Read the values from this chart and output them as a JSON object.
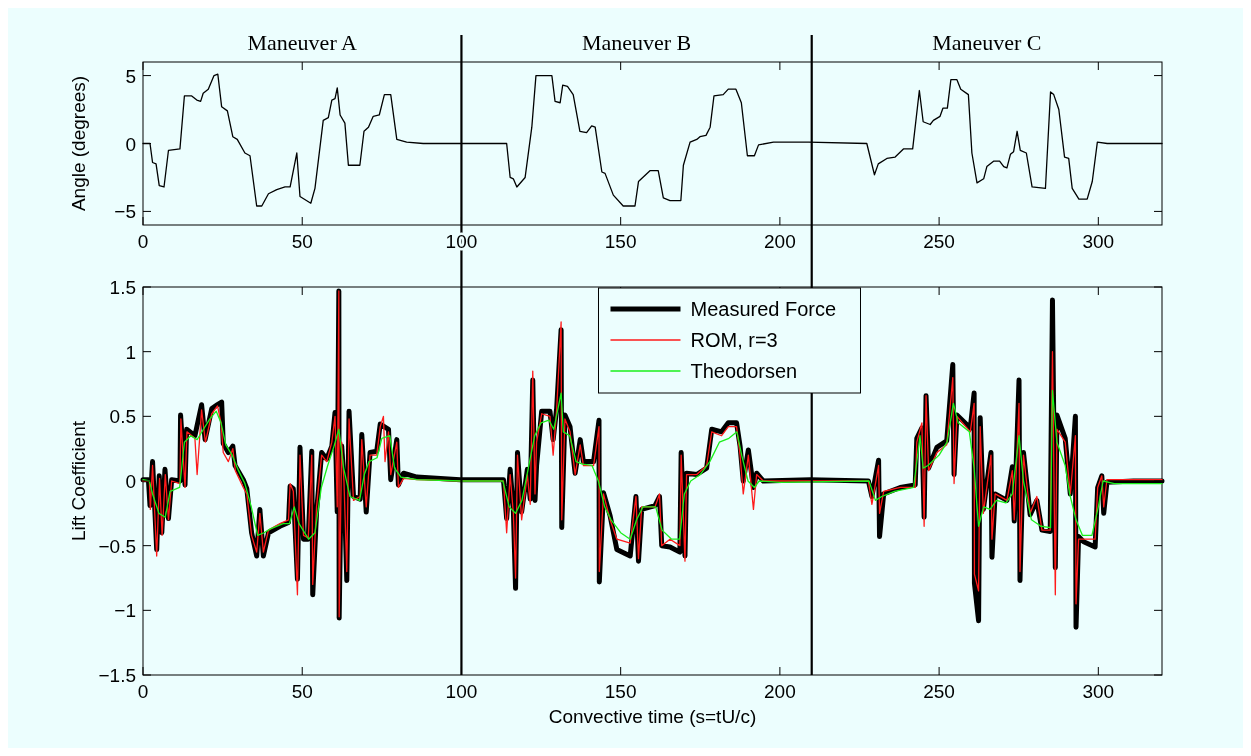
{
  "chart_data": [
    {
      "type": "line",
      "ylabel": "Angle (degrees)",
      "xlim": [
        0,
        320
      ],
      "xticks": [
        0,
        50,
        100,
        150,
        200,
        250,
        300
      ],
      "ylim": [
        -6,
        6
      ],
      "yticks": [
        -5,
        0,
        5
      ],
      "annotations": [
        "Maneuver A",
        "Maneuver B",
        "Maneuver C"
      ],
      "ref_lines": [
        {
          "axis": "x",
          "value": 100,
          "color": "#000000"
        },
        {
          "axis": "x",
          "value": 210,
          "color": "#000000"
        }
      ],
      "series": [
        {
          "color": "#000000",
          "x": [
            0,
            2.2,
            3.0,
            4.1,
            5.1,
            6.6,
            8.0,
            11.6,
            13.0,
            15.3,
            16.9,
            18.1,
            18.9,
            20.5,
            22.3,
            23.5,
            24.7,
            26.5,
            28.2,
            29.6,
            32.0,
            33.6,
            35.7,
            37.3,
            39.4,
            42.0,
            44.6,
            46.2,
            48.3,
            49.3,
            52.7,
            54.0,
            56.6,
            58.2,
            59.3,
            60.3,
            61.0,
            61.9,
            63.4,
            64.5,
            68.1,
            69.4,
            70.8,
            72.3,
            74.2,
            75.8,
            77.8,
            79.7,
            82.8,
            88.0,
            100,
            114.2,
            115.3,
            116.3,
            117.4,
            120.0,
            122.1,
            123.4,
            128.4,
            129.4,
            131.0,
            131.8,
            133.3,
            135.1,
            137.2,
            139.3,
            140.9,
            142.0,
            144.1,
            145.1,
            147.7,
            150.8,
            154.5,
            155.6,
            159.2,
            161.8,
            163.4,
            165.5,
            168.9,
            169.7,
            171.8,
            173.9,
            174.9,
            176.8,
            178.1,
            179.3,
            182.2,
            183.8,
            186.2,
            187.9,
            189.8,
            192.0,
            193.3,
            198.0,
            209,
            227.3,
            229.7,
            230.9,
            233.6,
            236.2,
            238.8,
            241.7,
            243.8,
            245.0,
            247.2,
            248.2,
            250.3,
            251.2,
            252.6,
            253.7,
            255.6,
            256.8,
            259.2,
            260.3,
            261.9,
            264.0,
            265.0,
            267.1,
            269.0,
            270.3,
            271.3,
            272.4,
            273.4,
            274.5,
            275.5,
            277.4,
            279.2,
            283.4,
            285.0,
            286.0,
            287.6,
            289.4,
            290.7,
            291.8,
            293.9,
            296.5,
            298.1,
            299.7,
            302.8,
            320
          ],
          "values": [
            0,
            0,
            -1.4,
            -1.5,
            -3.1,
            -3.2,
            -0.5,
            -0.4,
            3.5,
            3.5,
            3.2,
            3.1,
            3.7,
            4.0,
            5.0,
            5.1,
            2.7,
            2.4,
            0.5,
            0.3,
            -0.7,
            -0.9,
            -4.6,
            -4.6,
            -3.7,
            -3.4,
            -3.2,
            -3.2,
            -0.7,
            -3.9,
            -4.4,
            -3.3,
            1.7,
            1.9,
            3.2,
            3.3,
            4.1,
            2.1,
            1.5,
            -1.6,
            -1.6,
            0.9,
            1.2,
            2.0,
            2.1,
            3.6,
            3.6,
            0.3,
            0.1,
            0,
            0,
            0,
            -2.5,
            -2.6,
            -3.2,
            -2.5,
            1.2,
            5.0,
            5.0,
            3.1,
            3.0,
            4.3,
            4.2,
            3.6,
            0.9,
            0.8,
            1.3,
            1.2,
            -2.1,
            -2.2,
            -3.8,
            -4.6,
            -4.6,
            -2.8,
            -2.0,
            -2.0,
            -4.0,
            -4.2,
            -4.2,
            -1.6,
            0.1,
            0.3,
            0.5,
            0.6,
            1.2,
            3.5,
            3.6,
            4.0,
            4.0,
            3.0,
            -0.9,
            -0.9,
            -0.1,
            0.1,
            0.1,
            0,
            -2.3,
            -1.5,
            -1.1,
            -1.0,
            -0.4,
            -0.4,
            3.9,
            1.6,
            1.4,
            1.7,
            2.0,
            2.6,
            2.6,
            4.7,
            4.7,
            4.0,
            3.6,
            -0.7,
            -2.9,
            -2.6,
            -1.7,
            -1.3,
            -1.3,
            -1.7,
            -1.8,
            -0.8,
            -0.6,
            0.9,
            -0.5,
            -0.7,
            -3.2,
            -3.3,
            3.8,
            3.6,
            2.5,
            -1.0,
            -1.1,
            -3.3,
            -4.1,
            -4.1,
            -2.8,
            0.1,
            0,
            0
          ]
        }
      ]
    },
    {
      "type": "line",
      "xlabel": "Convective time (s=tU/c)",
      "ylabel": "Lift Coefficient",
      "xlim": [
        0,
        320
      ],
      "xticks": [
        0,
        50,
        100,
        150,
        200,
        250,
        300
      ],
      "ylim": [
        -1.5,
        1.5
      ],
      "yticks": [
        -1.5,
        -1,
        -0.5,
        0,
        0.5,
        1,
        1.5
      ],
      "legend": "top",
      "ref_lines": [
        {
          "axis": "x",
          "value": 100,
          "color": "#000000"
        },
        {
          "axis": "x",
          "value": 210,
          "color": "#000000"
        }
      ],
      "series": [
        {
          "name": "Measured Force",
          "color": "#000000",
          "x": [
            0,
            1.7,
            2.2,
            3.0,
            4.3,
            5.1,
            5.9,
            6.9,
            8.0,
            9.0,
            11.6,
            11.8,
            13.2,
            13.7,
            16.3,
            18.4,
            19.5,
            21.6,
            23.4,
            24.7,
            25.2,
            26.8,
            28.2,
            28.9,
            31.5,
            32.6,
            34.1,
            35.7,
            36.7,
            37.8,
            39.4,
            43.0,
            45.7,
            46.2,
            47.2,
            48.5,
            49.3,
            50.4,
            51.9,
            53.0,
            53.3,
            54.5,
            56.1,
            57.7,
            59.3,
            60.3,
            61.0,
            61.5,
            61.6,
            62.4,
            63.1,
            64.0,
            64.7,
            66.1,
            68.2,
            68.7,
            70.1,
            71.3,
            73.4,
            74.5,
            77.1,
            77.8,
            79.7,
            80.2,
            81.8,
            86.0,
            99.6,
            113.2,
            114.2,
            115.3,
            116.3,
            117.0,
            117.6,
            118.9,
            120.7,
            121.6,
            122.4,
            123.1,
            123.6,
            125.2,
            127.8,
            128.8,
            129.9,
            131.3,
            131.5,
            132.5,
            134.1,
            135.7,
            137.3,
            138.3,
            141.5,
            143.2,
            143.3,
            144.6,
            146.7,
            148.8,
            153.0,
            154.8,
            155.6,
            156.6,
            160.8,
            162.2,
            162.9,
            165.5,
            168.6,
            169.0,
            170.2,
            170.7,
            173.9,
            177.0,
            178.6,
            181.7,
            183.8,
            186.4,
            187.5,
            188.5,
            190.1,
            191.7,
            192.7,
            194.8,
            209.5,
            227.8,
            228.9,
            231.0,
            231.3,
            232.6,
            237.8,
            242.5,
            243.0,
            244.6,
            245.3,
            245.9,
            246.7,
            249.3,
            252.4,
            254.3,
            254.7,
            255.6,
            259.8,
            261.0,
            261.1,
            262.4,
            262.9,
            263.9,
            266.3,
            266.6,
            267.6,
            271.3,
            273.0,
            273.6,
            275.1,
            275.4,
            276.5,
            278.6,
            280.7,
            282.3,
            284.9,
            285.6,
            286.5,
            287.0,
            289.6,
            291.2,
            292.8,
            293.0,
            293.8,
            295.4,
            299.0,
            299.8,
            301.1,
            301.7,
            302.7,
            311.1,
            320
          ],
          "values": [
            0.01,
            0.01,
            -0.19,
            0.15,
            -0.53,
            0.04,
            -0.4,
            0.09,
            -0.29,
            0.01,
            0,
            0.51,
            -0.03,
            0.4,
            0.35,
            0.59,
            0.32,
            0.56,
            0.59,
            0.61,
            0.29,
            0.22,
            0.27,
            0.12,
            0.01,
            -0.06,
            -0.4,
            -0.58,
            -0.22,
            -0.58,
            -0.4,
            -0.35,
            -0.32,
            -0.04,
            -0.06,
            -0.76,
            0.26,
            -0.45,
            -0.45,
            0.23,
            -0.88,
            -0.24,
            0.22,
            0.17,
            0.27,
            0.53,
            -0.24,
            1.47,
            -1.06,
            0.27,
            0.01,
            -0.77,
            0.54,
            -0.12,
            -0.14,
            0.36,
            -0.24,
            0.22,
            0.23,
            0.44,
            0.4,
            0.01,
            0.32,
            -0.03,
            0.06,
            0.03,
            0.01,
            0.01,
            -0.29,
            0.09,
            -0.22,
            -0.83,
            0.22,
            -0.24,
            0.09,
            -0.14,
            0.78,
            -0.15,
            0.12,
            0.54,
            0.54,
            0.32,
            0.56,
            1.17,
            -0.36,
            0.51,
            0.42,
            0.06,
            0.32,
            0.15,
            0.15,
            0.47,
            -0.78,
            -0.09,
            -0.27,
            -0.53,
            -0.58,
            -0.12,
            -0.62,
            -0.22,
            -0.19,
            -0.12,
            -0.5,
            -0.51,
            -0.55,
            0.22,
            -0.58,
            0.06,
            0.05,
            0.1,
            0.4,
            0.38,
            0.45,
            0.45,
            0.27,
            0,
            0.24,
            -0.05,
            0.06,
            0,
            0.01,
            0,
            -0.12,
            0.16,
            -0.43,
            -0.1,
            -0.05,
            -0.03,
            0.33,
            0.41,
            -0.28,
            0.66,
            0.1,
            0.26,
            0.31,
            0.9,
            0.05,
            0.51,
            0.41,
            0.68,
            -0.79,
            -1.08,
            0.49,
            -0.22,
            0.22,
            -0.59,
            -0.1,
            -0.15,
            0.11,
            -0.31,
            0.78,
            -0.77,
            0.22,
            -0.26,
            -0.15,
            -0.38,
            -0.39,
            1.4,
            -0.67,
            0.51,
            0.33,
            -0.1,
            0.5,
            -1.13,
            -0.43,
            -0.47,
            -0.51,
            -0.05,
            0.04,
            -0.25,
            -0.01,
            0,
            0
          ]
        },
        {
          "name": "ROM, r=3",
          "color": "#ff1a1a",
          "x": [
            0,
            2,
            2.3,
            3,
            4.3,
            5.2,
            6,
            7,
            8,
            9,
            11.6,
            11.9,
            13.2,
            13.8,
            16.3,
            17,
            18.4,
            19.6,
            21.6,
            23.4,
            24.5,
            25.2,
            26.8,
            28.2,
            29,
            31.5,
            32.6,
            34.1,
            35.7,
            36.7,
            37.8,
            39.4,
            43,
            45.7,
            46.2,
            47.2,
            48.5,
            49.3,
            50.4,
            51.9,
            53,
            53.3,
            54.5,
            56.1,
            57.7,
            59.3,
            60.3,
            61,
            61.5,
            61.6,
            62.4,
            63.1,
            64,
            64.7,
            66.1,
            68.2,
            68.7,
            70.1,
            71.3,
            73.4,
            74.5,
            75.5,
            76,
            77.1,
            77.8,
            79.7,
            80.2,
            81.8,
            86,
            99.6,
            113.2,
            114.2,
            115.3,
            116.3,
            117,
            117.6,
            118.9,
            120.7,
            121.6,
            122.4,
            123.1,
            123.6,
            125.2,
            127.8,
            128.8,
            129.9,
            131.3,
            131.5,
            132.5,
            134.1,
            135.7,
            137.3,
            138.3,
            141.5,
            143.2,
            143.3,
            144.6,
            146.7,
            148.8,
            153,
            154.8,
            155.6,
            156.6,
            160.8,
            162.2,
            162.9,
            165.5,
            168.6,
            169,
            170.2,
            170.7,
            173.9,
            177,
            178.6,
            181.7,
            183.8,
            186.4,
            187.5,
            188.5,
            190.1,
            191.7,
            192.7,
            194.8,
            209.5,
            227.8,
            228.9,
            231,
            231.3,
            232.6,
            237.8,
            242.5,
            243,
            244.6,
            245.3,
            245.9,
            246.7,
            249.3,
            252.4,
            254.3,
            254.7,
            255.6,
            259.8,
            261,
            261.1,
            262.4,
            262.9,
            263.9,
            266.3,
            266.6,
            267.6,
            271.3,
            273,
            273.6,
            275.1,
            275.4,
            276.5,
            278.6,
            280.7,
            282.3,
            284.9,
            285.6,
            286.5,
            287,
            289.6,
            291.2,
            292.8,
            293,
            293.8,
            295.4,
            299,
            299.8,
            301.1,
            301.7,
            302.7,
            311.1,
            320
          ],
          "values": [
            0,
            0,
            -0.22,
            0.12,
            -0.58,
            0.02,
            -0.42,
            0.05,
            -0.3,
            0,
            -0.02,
            0.48,
            -0.05,
            0.38,
            0.33,
            0.05,
            0.55,
            0.3,
            0.52,
            0.58,
            0.45,
            0.22,
            0.15,
            0.25,
            0.08,
            -0.05,
            -0.1,
            -0.42,
            -0.55,
            -0.25,
            -0.55,
            -0.38,
            -0.33,
            -0.3,
            -0.02,
            -0.08,
            -0.88,
            0.2,
            -0.42,
            -0.44,
            0.2,
            -0.8,
            -0.2,
            0.2,
            0.15,
            0.3,
            0.5,
            -0.2,
            1.47,
            -1.05,
            0.3,
            0,
            -0.7,
            0.48,
            -0.15,
            -0.12,
            0.32,
            -0.2,
            0.2,
            0.2,
            0.42,
            0.5,
            0.15,
            0.38,
            0.05,
            0.3,
            -0.05,
            0.02,
            0.01,
            0,
            0,
            -0.4,
            0.05,
            -0.25,
            -0.75,
            0.2,
            -0.3,
            0.05,
            -0.18,
            0.85,
            -0.1,
            0.3,
            0.52,
            0.5,
            0.2,
            0.55,
            1.23,
            -0.3,
            0.48,
            0.38,
            0.05,
            0.28,
            0.12,
            0.12,
            0.42,
            -0.7,
            -0.1,
            -0.3,
            -0.45,
            -0.48,
            -0.12,
            -0.6,
            -0.2,
            -0.2,
            -0.1,
            -0.5,
            -0.45,
            -0.5,
            0.2,
            -0.62,
            0.05,
            0.05,
            0.12,
            0.38,
            0.35,
            0.42,
            0.42,
            0.2,
            -0.1,
            0.2,
            -0.22,
            0.05,
            0,
            0,
            0,
            -0.18,
            0.12,
            -0.25,
            -0.08,
            -0.05,
            -0.05,
            0.3,
            0.45,
            -0.35,
            0.66,
            0.08,
            0.22,
            0.28,
            0.8,
            -0.02,
            0.5,
            0.38,
            0.6,
            -0.72,
            -0.85,
            0.42,
            -0.25,
            0.2,
            -0.45,
            -0.1,
            -0.15,
            0.08,
            -0.3,
            0.6,
            -0.7,
            0.2,
            -0.25,
            -0.12,
            -0.38,
            -0.38,
            1.0,
            -0.88,
            0.4,
            0.3,
            -0.1,
            0.35,
            -0.95,
            -0.45,
            -0.45,
            -0.45,
            -0.05,
            0.04,
            -0.2,
            0.01,
            0.01,
            0.01
          ]
        },
        {
          "name": "Theodorsen",
          "color": "#1aef1a",
          "x": [
            0,
            2,
            3,
            5,
            7,
            8.5,
            11.5,
            13,
            15,
            17,
            19,
            21,
            23,
            24.5,
            26,
            28,
            30,
            32,
            34,
            36,
            38,
            40,
            44,
            46,
            47.5,
            49,
            52,
            54,
            56,
            58,
            60,
            61.5,
            63,
            65,
            68,
            69.5,
            71,
            73.5,
            75,
            77.5,
            79,
            81,
            86,
            100,
            113,
            115,
            117,
            119,
            121,
            123,
            125,
            127.5,
            129,
            131.3,
            132,
            134,
            136,
            138,
            141,
            143,
            145,
            147,
            150,
            153,
            155,
            157,
            161,
            163,
            166,
            168.5,
            170,
            172,
            175,
            178,
            181,
            184,
            186.5,
            188,
            190,
            192,
            193.5,
            200,
            228,
            230,
            232,
            236,
            242,
            244,
            245,
            246.5,
            250,
            252.5,
            254.5,
            256,
            259.5,
            261,
            262.4,
            264,
            266,
            268,
            271,
            273,
            275.1,
            276.5,
            279,
            282,
            285,
            285.6,
            287,
            289.6,
            291,
            293,
            295,
            298,
            300,
            301.5,
            305,
            320
          ],
          "values": [
            0.01,
            0,
            -0.1,
            -0.25,
            -0.28,
            -0.08,
            -0.05,
            0.3,
            0.35,
            0.32,
            0.4,
            0.48,
            0.54,
            0.45,
            0.28,
            0.2,
            0.08,
            -0.02,
            -0.2,
            -0.42,
            -0.4,
            -0.37,
            -0.33,
            -0.33,
            -0.2,
            -0.33,
            -0.45,
            -0.4,
            -0.05,
            0.12,
            0.27,
            0.4,
            0.1,
            -0.12,
            -0.15,
            0.05,
            0.15,
            0.18,
            0.33,
            0.35,
            0.1,
            0.03,
            0.01,
            0,
            0,
            -0.2,
            -0.25,
            -0.15,
            0.1,
            0.35,
            0.45,
            0.47,
            0.4,
            0.68,
            0.38,
            0.35,
            0.15,
            0.13,
            0.12,
            0,
            -0.2,
            -0.3,
            -0.4,
            -0.45,
            -0.3,
            -0.2,
            -0.2,
            -0.38,
            -0.45,
            -0.45,
            -0.1,
            0,
            0.05,
            0.15,
            0.3,
            0.33,
            0.38,
            0.2,
            0,
            -0.05,
            0,
            -0.01,
            0,
            -0.15,
            -0.12,
            -0.08,
            -0.05,
            0.35,
            0.1,
            0.12,
            0.2,
            0.3,
            0.6,
            0.45,
            0.38,
            0.1,
            -0.35,
            -0.2,
            -0.22,
            -0.15,
            -0.17,
            -0.1,
            0.35,
            0,
            -0.3,
            -0.35,
            -0.36,
            0.7,
            0.3,
            0.12,
            -0.1,
            -0.3,
            -0.42,
            -0.42,
            -0.2,
            0,
            -0.02,
            -0.02
          ]
        }
      ]
    }
  ]
}
